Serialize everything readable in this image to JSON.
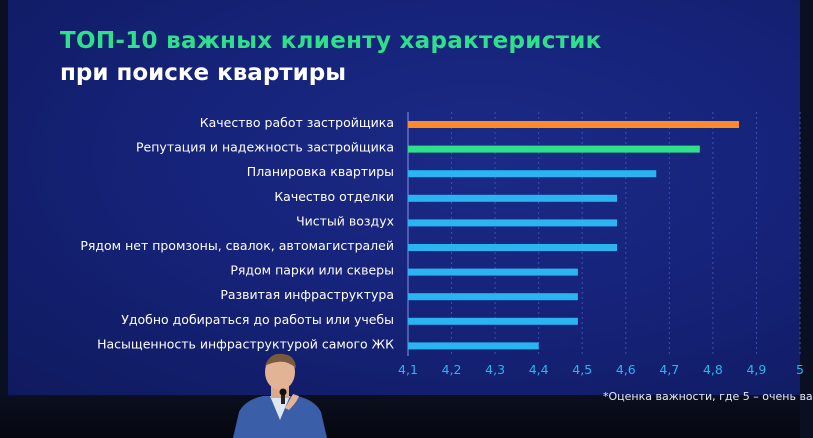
{
  "title": {
    "line1": "ТОП-10 важных клиенту характеристик",
    "line2": "при поиске квартиры"
  },
  "footnote": "*Оценка важности, где 5 – очень ва",
  "colors": {
    "orange": "#ff8a2a",
    "green": "#2fe08a",
    "blue": "#2ab4f0",
    "background": "#16237a"
  },
  "chart_data": {
    "type": "bar",
    "orientation": "horizontal",
    "categories": [
      "Качество работ застройщика",
      "Репутация и надежность застройщика",
      "Планировка квартиры",
      "Качество отделки",
      "Чистый воздух",
      "Рядом нет промзоны, свалок, автомагистралей",
      "Рядом парки или скверы",
      "Развитая инфраструктура",
      "Удобно добираться до работы или учебы",
      "Насыщенность инфраструктурой самого ЖК"
    ],
    "values": [
      4.86,
      4.77,
      4.67,
      4.58,
      4.58,
      4.58,
      4.49,
      4.49,
      4.49,
      4.4
    ],
    "bar_colors": [
      "orange",
      "green",
      "blue",
      "blue",
      "blue",
      "blue",
      "blue",
      "blue",
      "blue",
      "blue"
    ],
    "xlim": [
      4.1,
      5.0
    ],
    "xticks": [
      "4,1",
      "4,2",
      "4,3",
      "4,4",
      "4,5",
      "4,6",
      "4,7",
      "4,8",
      "4,9",
      "5"
    ],
    "grid": true
  }
}
